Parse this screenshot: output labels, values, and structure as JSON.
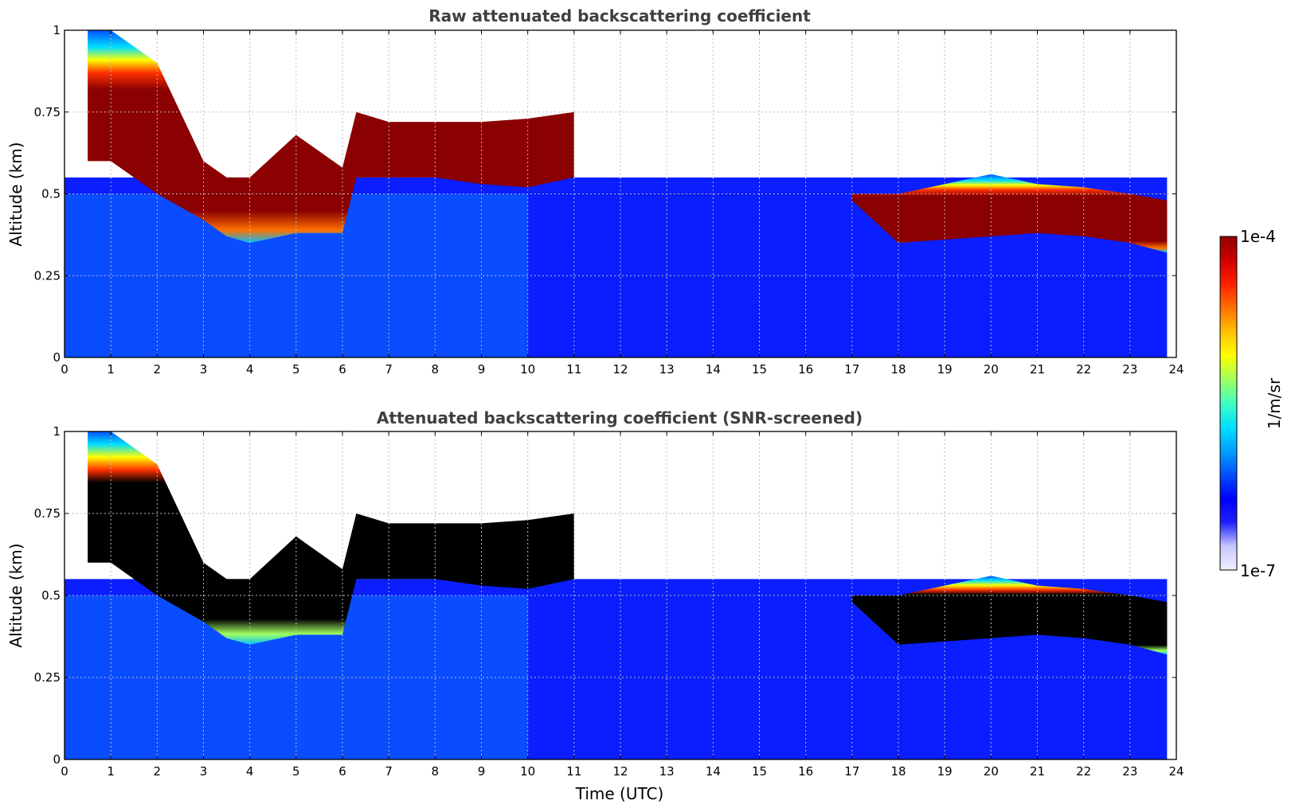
{
  "chart_data": [
    {
      "type": "heatmap",
      "title": "Raw attenuated backscattering coefficient",
      "xlabel": "",
      "ylabel": "Altitude (km)",
      "xlim": [
        0,
        24
      ],
      "ylim": [
        0,
        1
      ],
      "xticks": [
        "0",
        "1",
        "2",
        "3",
        "4",
        "5",
        "6",
        "7",
        "8",
        "9",
        "10",
        "11",
        "12",
        "13",
        "14",
        "15",
        "16",
        "17",
        "18",
        "19",
        "20",
        "21",
        "22",
        "23",
        "24"
      ],
      "yticks": [
        "0",
        "0.25",
        "0.5",
        "0.75",
        "1"
      ],
      "grid": true,
      "cloud_layer": {
        "time": [
          0.5,
          1,
          2,
          3,
          3.5,
          4,
          5,
          6,
          6.3,
          7,
          8,
          9,
          10,
          11,
          17,
          18,
          19,
          20,
          21,
          22,
          23,
          23.8
        ],
        "base_km": [
          0.6,
          0.6,
          0.5,
          0.42,
          0.37,
          0.35,
          0.38,
          0.38,
          0.55,
          0.55,
          0.55,
          0.53,
          0.52,
          0.55,
          0.48,
          0.35,
          0.36,
          0.37,
          0.38,
          0.37,
          0.35,
          0.32
        ],
        "top_km": [
          1.0,
          1.0,
          0.9,
          0.6,
          0.55,
          0.55,
          0.68,
          0.58,
          0.75,
          0.72,
          0.72,
          0.72,
          0.73,
          0.75,
          0.5,
          0.5,
          0.53,
          0.56,
          0.53,
          0.52,
          0.5,
          0.48
        ]
      }
    },
    {
      "type": "heatmap",
      "title": "Attenuated backscattering coefficient (SNR-screened)",
      "xlabel": "Time (UTC)",
      "ylabel": "Altitude (km)",
      "xlim": [
        0,
        24
      ],
      "ylim": [
        0,
        1
      ],
      "xticks": [
        "0",
        "1",
        "2",
        "3",
        "4",
        "5",
        "6",
        "7",
        "8",
        "9",
        "10",
        "11",
        "12",
        "13",
        "14",
        "15",
        "16",
        "17",
        "18",
        "19",
        "20",
        "21",
        "22",
        "23",
        "24"
      ],
      "yticks": [
        "0",
        "0.25",
        "0.5",
        "0.75",
        "1"
      ],
      "grid": true,
      "cloud_layer": {
        "time": [
          0.5,
          1,
          2,
          3,
          3.5,
          4,
          5,
          6,
          6.3,
          7,
          8,
          9,
          10,
          11,
          17,
          18,
          19,
          20,
          21,
          22,
          23,
          23.8
        ],
        "base_km": [
          0.6,
          0.6,
          0.5,
          0.42,
          0.37,
          0.35,
          0.38,
          0.38,
          0.55,
          0.55,
          0.55,
          0.53,
          0.52,
          0.55,
          0.48,
          0.35,
          0.36,
          0.37,
          0.38,
          0.37,
          0.35,
          0.32
        ],
        "top_km": [
          1.0,
          1.0,
          0.9,
          0.6,
          0.55,
          0.55,
          0.68,
          0.58,
          0.75,
          0.72,
          0.72,
          0.72,
          0.73,
          0.75,
          0.5,
          0.5,
          0.53,
          0.56,
          0.53,
          0.52,
          0.5,
          0.48
        ]
      }
    }
  ],
  "colorbar": {
    "label": "1/m/sr",
    "max_label": "1e-4",
    "min_label": "1e-7",
    "scale": "log",
    "colors": [
      "#f0f0ff",
      "#c8c8ff",
      "#1e1eff",
      "#0000ff",
      "#0050ff",
      "#00a0ff",
      "#00e0ff",
      "#40ffc0",
      "#a0ff60",
      "#ffff00",
      "#ffc000",
      "#ff7000",
      "#ff2000",
      "#d00000",
      "#900000"
    ]
  },
  "colors": {
    "background_blue": "#0a1eff",
    "saturated": "#8b0000",
    "screened_core": "#000000"
  }
}
